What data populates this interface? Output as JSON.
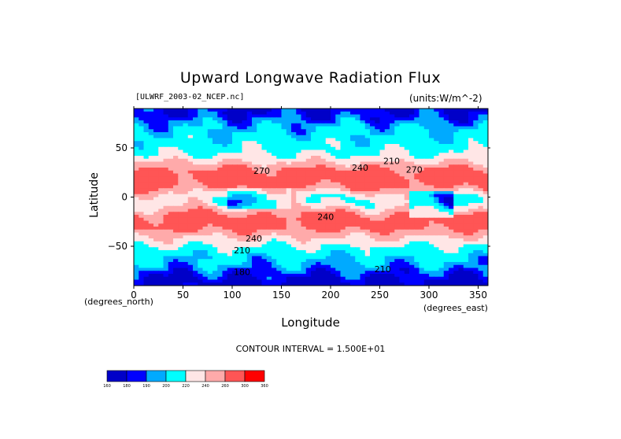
{
  "chart_data": {
    "type": "heatmap",
    "title": "Upward Longwave Radiation Flux",
    "file": "[ULWRF_2003-02_NCEP.nc]",
    "units": "(units:W/m^-2)",
    "xlabel": "Longitude",
    "ylabel": "Latitude",
    "x_sublabel": "(degrees_east)",
    "y_sublabel": "(degrees_north)",
    "xlim": [
      0,
      360
    ],
    "ylim": [
      -90,
      90
    ],
    "x_ticks": [
      0,
      50,
      100,
      150,
      200,
      250,
      300,
      350
    ],
    "y_ticks": [
      50,
      0,
      -50
    ],
    "contour_interval": "CONTOUR INTERVAL = 1.500E+01",
    "contour_labels": [
      {
        "lon": 230,
        "lat": 30,
        "text": "240"
      },
      {
        "lon": 262,
        "lat": 37,
        "text": "210"
      },
      {
        "lon": 285,
        "lat": 28,
        "text": "270"
      },
      {
        "lon": 130,
        "lat": 27,
        "text": "270"
      },
      {
        "lon": 195,
        "lat": -20,
        "text": "240"
      },
      {
        "lon": 122,
        "lat": -42,
        "text": "240"
      },
      {
        "lon": 110,
        "lat": -54,
        "text": "210"
      },
      {
        "lon": 110,
        "lat": -76,
        "text": "180"
      },
      {
        "lon": 253,
        "lat": -73,
        "text": "210"
      }
    ],
    "colorbar": {
      "levels": [
        "160",
        "180",
        "190",
        "200",
        "220",
        "240",
        "260",
        "300",
        "360"
      ],
      "colors": [
        "#0000c8",
        "#0000ff",
        "#00aaff",
        "#00ffff",
        "#ffe6e6",
        "#ffaaaa",
        "#ff5555",
        "#ff0000"
      ]
    },
    "field_bands": [
      {
        "lat": 90,
        "value": 180
      },
      {
        "lat": 82,
        "value": 185
      },
      {
        "lat": 72,
        "value": 198
      },
      {
        "lat": 62,
        "value": 205
      },
      {
        "lat": 52,
        "value": 212
      },
      {
        "lat": 42,
        "value": 222
      },
      {
        "lat": 34,
        "value": 245
      },
      {
        "lat": 26,
        "value": 268
      },
      {
        "lat": 18,
        "value": 280
      },
      {
        "lat": 10,
        "value": 262
      },
      {
        "lat": 2,
        "value": 232
      },
      {
        "lat": -6,
        "value": 225
      },
      {
        "lat": -14,
        "value": 250
      },
      {
        "lat": -22,
        "value": 272
      },
      {
        "lat": -30,
        "value": 270
      },
      {
        "lat": -38,
        "value": 248
      },
      {
        "lat": -46,
        "value": 228
      },
      {
        "lat": -54,
        "value": 212
      },
      {
        "lat": -62,
        "value": 202
      },
      {
        "lat": -70,
        "value": 196
      },
      {
        "lat": -78,
        "value": 184
      },
      {
        "lat": -90,
        "value": 172
      }
    ]
  }
}
